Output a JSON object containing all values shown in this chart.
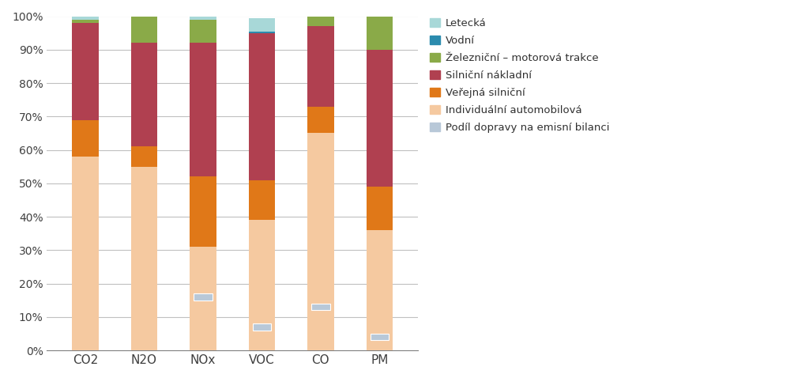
{
  "categories": [
    "CO2",
    "N2O",
    "NOx",
    "VOC",
    "CO",
    "PM"
  ],
  "series": {
    "Individuální automobilová": [
      58,
      55,
      31,
      39,
      65,
      36
    ],
    "Veřejná silniční": [
      11,
      6,
      21,
      12,
      8,
      13
    ],
    "Silniční nákladní": [
      29,
      31,
      40,
      44,
      24,
      41
    ],
    "Železniční – motorová trakce": [
      1,
      8,
      7,
      0,
      3,
      10
    ],
    "Vodní": [
      0,
      0,
      0,
      0.5,
      0,
      0
    ],
    "Letecká": [
      1,
      0,
      1,
      4,
      0,
      0
    ]
  },
  "podil": [
    0,
    0,
    16,
    7,
    13,
    4
  ],
  "colors": {
    "Individuální automobilová": "#F5C9A0",
    "Veřejná silniční": "#E07818",
    "Silniční nákladní": "#B04050",
    "Železniční – motorová trakce": "#8AAA48",
    "Vodní": "#2B8BAE",
    "Letecká": "#A8D8D8"
  },
  "podil_color": "#B8C8D8",
  "bar_width": 0.45,
  "fig_width": 10.24,
  "fig_height": 4.78,
  "legend_fontsize": 9.5,
  "tick_fontsize": 10,
  "xlabel_fontsize": 11
}
